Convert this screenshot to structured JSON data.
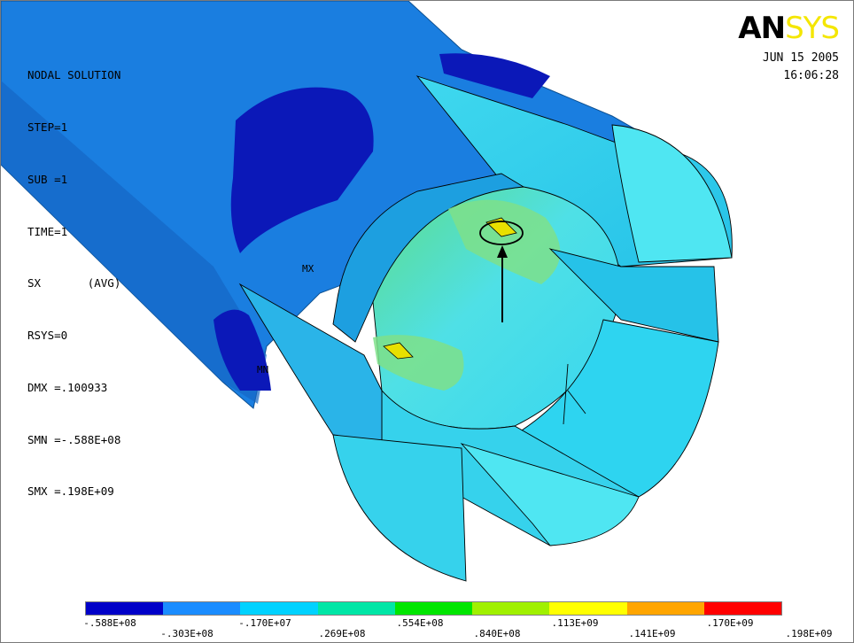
{
  "info": {
    "title": "NODAL SOLUTION",
    "lines": [
      "STEP=1",
      "SUB =1",
      "TIME=1",
      "SX       (AVG)",
      "RSYS=0",
      "DMX =.100933",
      "SMN =-.588E+08",
      "SMX =.198E+09"
    ]
  },
  "logo": {
    "part1": "AN",
    "part2": "SYS"
  },
  "date": "JUN 15 2005",
  "time": "16:06:28",
  "markers": {
    "max": "MX",
    "min": "MN"
  },
  "legend": {
    "colors": [
      "#0000c8",
      "#1a8cff",
      "#00d2ff",
      "#00e6a6",
      "#00e600",
      "#a0f000",
      "#ffff00",
      "#ffa500",
      "#ff0000"
    ],
    "labels_top": [
      "-.588E+08",
      "-.170E+07",
      ".554E+08",
      ".113E+09",
      ".170E+09"
    ],
    "labels_bottom": [
      "-.303E+08",
      ".269E+08",
      ".840E+08",
      ".141E+09",
      ".198E+09"
    ]
  },
  "colors": {
    "shaft": "#1a7ee0",
    "shaft_dark": "#1567c4",
    "cold": "#0b18b8",
    "mid": "#2ac6e6",
    "light": "#4fe6f2",
    "face": "#36d2ec",
    "warm": "#7ee08a",
    "hot": "#e8e000"
  }
}
